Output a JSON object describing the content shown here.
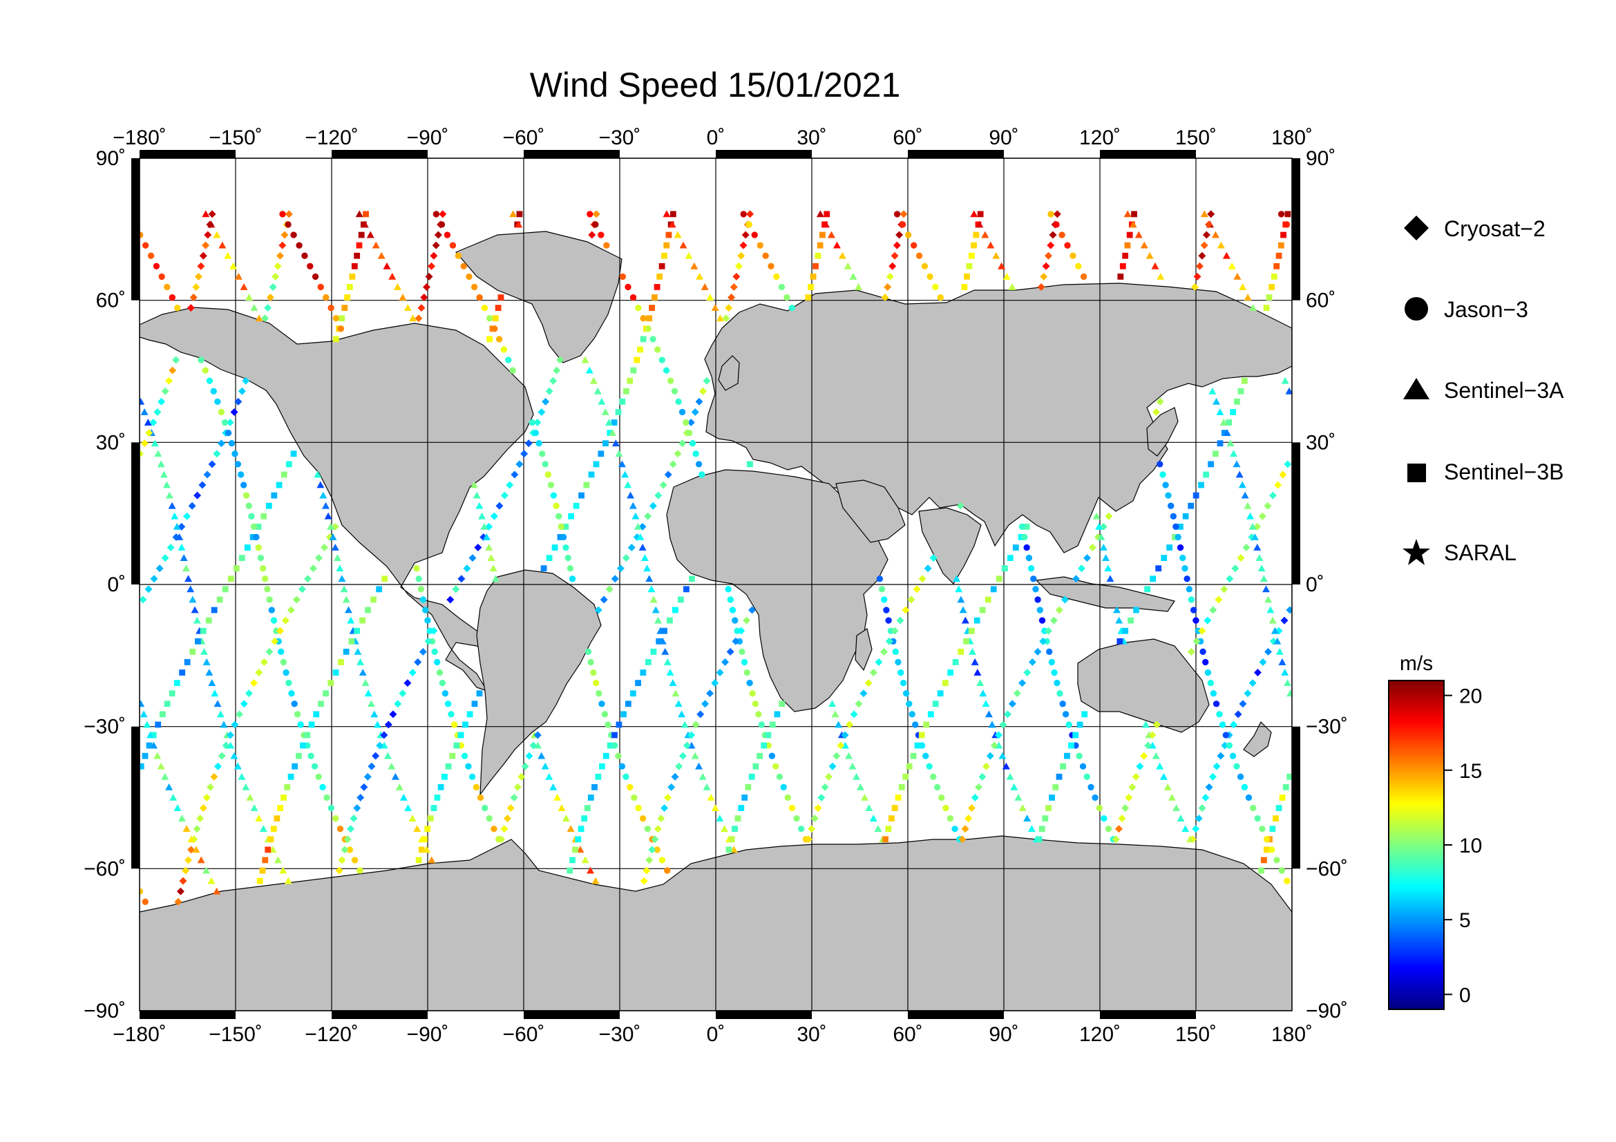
{
  "title": "Wind Speed 15/01/2021",
  "axes": {
    "lon_ticks": [
      -180,
      -150,
      -120,
      -90,
      -60,
      -30,
      0,
      30,
      60,
      90,
      120,
      150,
      180
    ],
    "lat_ticks": [
      90,
      60,
      30,
      0,
      -30,
      -60,
      -90
    ],
    "lon_labels": [
      "−180˚",
      "−150˚",
      "−120˚",
      "−90˚",
      "−60˚",
      "−30˚",
      "0˚",
      "30˚",
      "60˚",
      "90˚",
      "120˚",
      "150˚",
      "180˚"
    ],
    "lat_labels": [
      "90˚",
      "60˚",
      "30˚",
      "0˚",
      "−30˚",
      "−60˚",
      "−90˚"
    ],
    "lon_range": [
      -180,
      180
    ],
    "lat_range": [
      -90,
      90
    ],
    "grid": true
  },
  "legend": {
    "placement": "right",
    "items": [
      {
        "label": "Cryosat−2",
        "marker": "diamond-icon"
      },
      {
        "label": "Jason−3",
        "marker": "circle-icon"
      },
      {
        "label": "Sentinel−3A",
        "marker": "triangle-icon"
      },
      {
        "label": "Sentinel−3B",
        "marker": "square-icon"
      },
      {
        "label": "SARAL",
        "marker": "star-icon"
      }
    ]
  },
  "colorbar": {
    "unit": "m/s",
    "range": [
      -1,
      21
    ],
    "ticks": [
      0,
      5,
      10,
      15,
      20
    ],
    "tick_labels": [
      "0",
      "5",
      "10",
      "15",
      "20"
    ],
    "colormap": "jet"
  },
  "colors": {
    "land": "#c0c0c0",
    "ocean": "#ffffff",
    "grid": "#000000"
  }
}
